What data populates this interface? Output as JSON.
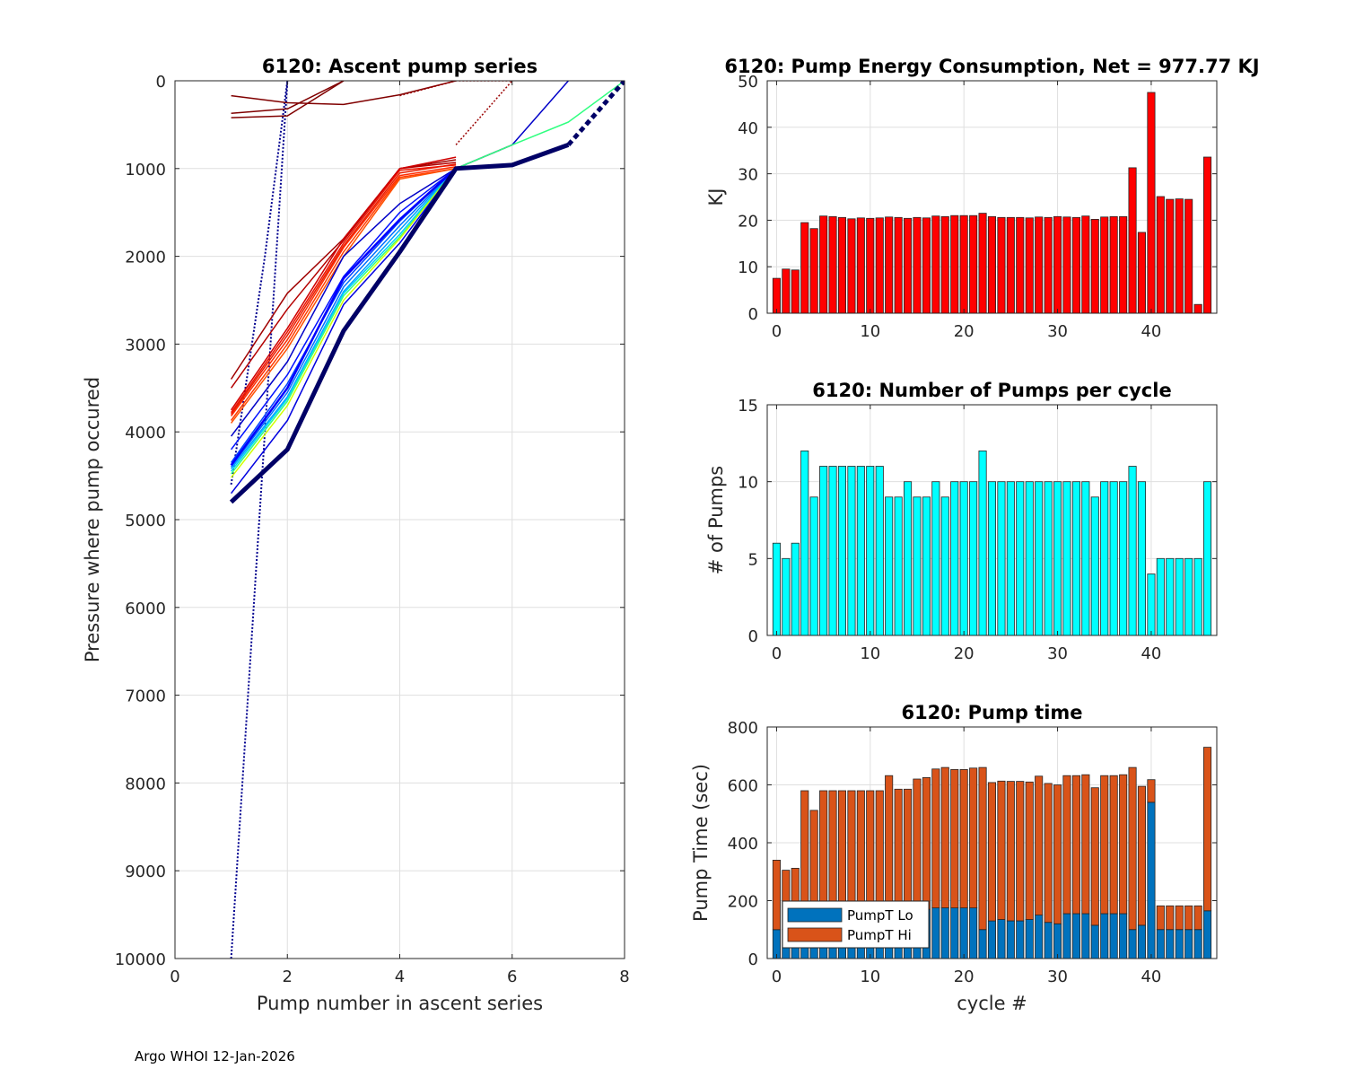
{
  "footer": "Argo WHOI 12-Jan-2026",
  "colors": {
    "energy_bar": "#ff0000",
    "pumps_bar": "#00ffff",
    "pumpt_lo": "#0072bd",
    "pumpt_hi": "#d95319",
    "bar_edge": "#262626"
  },
  "chart_data": [
    {
      "id": "ascent",
      "type": "line",
      "title": "6120: Ascent pump series",
      "xlabel": "Pump number in ascent series",
      "ylabel": "Pressure where pump occured",
      "xlim": [
        0,
        8
      ],
      "ylim": [
        0,
        10000
      ],
      "y_reversed": true,
      "xticks": [
        0,
        2,
        4,
        6,
        8
      ],
      "yticks": [
        0,
        1000,
        2000,
        3000,
        4000,
        5000,
        6000,
        7000,
        8000,
        9000,
        10000
      ],
      "series": [
        {
          "name": "c1",
          "color": "#00008f",
          "width": 2,
          "dash": "2,2",
          "x": [
            1,
            2,
            2
          ],
          "y": [
            10000,
            0,
            0
          ]
        },
        {
          "name": "c1b",
          "color": "#00008f",
          "width": 2,
          "dash": "2,2",
          "x": [
            1,
            1.6,
            2
          ],
          "y": [
            4600,
            2000,
            0
          ]
        },
        {
          "name": "c2",
          "color": "#800000",
          "width": 1.5,
          "dash": "",
          "x": [
            1,
            2,
            3,
            4,
            5
          ],
          "y": [
            170,
            250,
            270,
            160,
            0
          ]
        },
        {
          "name": "c3",
          "color": "#800000",
          "width": 1.5,
          "dash": "",
          "x": [
            1,
            2,
            2.5,
            3
          ],
          "y": [
            420,
            400,
            200,
            0
          ]
        },
        {
          "name": "c4",
          "color": "#800000",
          "width": 1.5,
          "dash": "",
          "x": [
            1,
            2,
            3
          ],
          "y": [
            370,
            320,
            0
          ]
        },
        {
          "name": "c5",
          "color": "#9a0000",
          "width": 1.5,
          "dash": "2,2",
          "x": [
            4,
            5,
            6
          ],
          "y": [
            170,
            0,
            0
          ]
        },
        {
          "name": "c6",
          "color": "#9a0000",
          "width": 1.5,
          "dash": "2,2",
          "x": [
            5,
            6
          ],
          "y": [
            730,
            0
          ]
        },
        {
          "name": "r1",
          "color": "#a00000",
          "width": 1.5,
          "dash": "",
          "x": [
            1,
            2,
            3,
            4,
            5
          ],
          "y": [
            3400,
            2420,
            1800,
            1000,
            900
          ]
        },
        {
          "name": "r2",
          "color": "#b40000",
          "width": 1.5,
          "dash": "",
          "x": [
            1,
            2,
            3,
            4,
            5
          ],
          "y": [
            3500,
            2600,
            1820,
            1000,
            930
          ]
        },
        {
          "name": "r3",
          "color": "#d00000",
          "width": 1.5,
          "dash": "",
          "x": [
            1,
            2,
            3,
            4,
            5
          ],
          "y": [
            3750,
            2820,
            1800,
            1000,
            870
          ]
        },
        {
          "name": "r4",
          "color": "#e61e00",
          "width": 1.5,
          "dash": "",
          "x": [
            1,
            2,
            3,
            4,
            5
          ],
          "y": [
            3800,
            2900,
            1880,
            1050,
            950
          ]
        },
        {
          "name": "r5",
          "color": "#ff2a00",
          "width": 1.5,
          "dash": "",
          "x": [
            1,
            2,
            3,
            4,
            5
          ],
          "y": [
            3820,
            2950,
            1900,
            1080,
            980
          ]
        },
        {
          "name": "r6",
          "color": "#ff3c00",
          "width": 1.5,
          "dash": "",
          "x": [
            1,
            2,
            3,
            4,
            5
          ],
          "y": [
            3870,
            3000,
            1950,
            1100,
            1000
          ]
        },
        {
          "name": "r7",
          "color": "#f01400",
          "width": 1.5,
          "dash": "",
          "x": [
            1,
            2,
            3,
            4,
            5
          ],
          "y": [
            3780,
            2860,
            1850,
            1020,
            960
          ]
        },
        {
          "name": "r8",
          "color": "#ff5000",
          "width": 1.5,
          "dash": "",
          "x": [
            1,
            2,
            3,
            4,
            5,
            6
          ],
          "y": [
            3900,
            3050,
            2000,
            1120,
            1000,
            730
          ]
        },
        {
          "name": "b1",
          "color": "#0000c8",
          "width": 1.5,
          "dash": "",
          "x": [
            1,
            2,
            3,
            4,
            5,
            6,
            7
          ],
          "y": [
            4050,
            3200,
            2000,
            1400,
            1000,
            730,
            0
          ]
        },
        {
          "name": "b2",
          "color": "#0010ff",
          "width": 1.5,
          "dash": "",
          "x": [
            1,
            2,
            3,
            4,
            5
          ],
          "y": [
            4200,
            3350,
            2230,
            1500,
            1000
          ]
        },
        {
          "name": "b3",
          "color": "#0040ff",
          "width": 1.5,
          "dash": "",
          "x": [
            1,
            2,
            3,
            4,
            5
          ],
          "y": [
            4350,
            3450,
            2300,
            1600,
            1000
          ]
        },
        {
          "name": "b4",
          "color": "#0070ff",
          "width": 1.5,
          "dash": "",
          "x": [
            1,
            2,
            3,
            4,
            5
          ],
          "y": [
            4400,
            3550,
            2350,
            1650,
            1000
          ]
        },
        {
          "name": "b5",
          "color": "#00a0ff",
          "width": 1.5,
          "dash": "",
          "x": [
            1,
            2,
            3,
            4,
            5
          ],
          "y": [
            4420,
            3600,
            2400,
            1700,
            1000
          ]
        },
        {
          "name": "b6",
          "color": "#00d0ff",
          "width": 1.5,
          "dash": "",
          "x": [
            1,
            2,
            3,
            4,
            5
          ],
          "y": [
            4450,
            3620,
            2420,
            1750,
            1000
          ]
        },
        {
          "name": "g1",
          "color": "#30ff80",
          "width": 1.5,
          "dash": "",
          "x": [
            1,
            2,
            3,
            4,
            5,
            6,
            7,
            8
          ],
          "y": [
            4480,
            3650,
            2450,
            1780,
            1000,
            730,
            470,
            0
          ]
        },
        {
          "name": "y1",
          "color": "#d0ff00",
          "width": 1.5,
          "dash": "",
          "x": [
            1,
            2,
            3,
            4,
            5
          ],
          "y": [
            4520,
            3700,
            2500,
            1800,
            1000
          ]
        },
        {
          "name": "b7",
          "color": "#0000e0",
          "width": 1.5,
          "dash": "",
          "x": [
            1,
            2,
            3,
            4,
            5
          ],
          "y": [
            4700,
            3870,
            2550,
            1850,
            1000
          ]
        },
        {
          "name": "b8",
          "color": "#0000ff",
          "width": 2.5,
          "dash": "",
          "x": [
            1,
            2,
            3,
            4,
            5
          ],
          "y": [
            4380,
            3500,
            2250,
            1580,
            1000
          ]
        },
        {
          "name": "k1",
          "color": "#000066",
          "width": 5,
          "dash": "",
          "x": [
            1,
            2,
            3,
            4,
            5,
            6,
            7
          ],
          "y": [
            4800,
            4200,
            2850,
            1950,
            1000,
            960,
            730
          ]
        },
        {
          "name": "k1d",
          "color": "#000066",
          "width": 5,
          "dash": "6,4",
          "x": [
            7,
            8
          ],
          "y": [
            730,
            0
          ]
        }
      ]
    },
    {
      "id": "energy",
      "type": "bar",
      "title": "6120: Pump Energy Consumption,  Net = 977.77 KJ",
      "xlabel": "",
      "ylabel": "KJ",
      "xlim": [
        -1,
        47
      ],
      "ylim": [
        0,
        50
      ],
      "xticks": [
        0,
        10,
        20,
        30,
        40
      ],
      "yticks": [
        0,
        10,
        20,
        30,
        40,
        50
      ],
      "categories": [
        0,
        1,
        2,
        3,
        4,
        5,
        6,
        7,
        8,
        9,
        10,
        11,
        12,
        13,
        14,
        15,
        16,
        17,
        18,
        19,
        20,
        21,
        22,
        23,
        24,
        25,
        26,
        27,
        28,
        29,
        30,
        31,
        32,
        33,
        34,
        35,
        36,
        37,
        38,
        39,
        40,
        41,
        42,
        43,
        44,
        45,
        46
      ],
      "values": [
        7.5,
        9.5,
        9.3,
        19.5,
        18.2,
        20.9,
        20.8,
        20.6,
        20.3,
        20.5,
        20.4,
        20.5,
        20.7,
        20.6,
        20.4,
        20.6,
        20.5,
        20.9,
        20.8,
        21,
        21,
        21,
        21.5,
        20.8,
        20.6,
        20.6,
        20.6,
        20.5,
        20.7,
        20.6,
        20.8,
        20.7,
        20.6,
        20.9,
        20.2,
        20.7,
        20.8,
        20.8,
        31.3,
        17.4,
        47.5,
        25.1,
        24.5,
        24.6,
        24.5,
        1.9,
        33.6
      ]
    },
    {
      "id": "pumps",
      "type": "bar",
      "title": "6120: Number of Pumps per cycle",
      "xlabel": "",
      "ylabel": "# of Pumps",
      "xlim": [
        -1,
        47
      ],
      "ylim": [
        0,
        15
      ],
      "xticks": [
        0,
        10,
        20,
        30,
        40
      ],
      "yticks": [
        0,
        5,
        10,
        15
      ],
      "categories": [
        0,
        1,
        2,
        3,
        4,
        5,
        6,
        7,
        8,
        9,
        10,
        11,
        12,
        13,
        14,
        15,
        16,
        17,
        18,
        19,
        20,
        21,
        22,
        23,
        24,
        25,
        26,
        27,
        28,
        29,
        30,
        31,
        32,
        33,
        34,
        35,
        36,
        37,
        38,
        39,
        40,
        41,
        42,
        43,
        44,
        45,
        46
      ],
      "values": [
        6,
        5,
        6,
        12,
        9,
        11,
        11,
        11,
        11,
        11,
        11,
        11,
        9,
        9,
        10,
        9,
        9,
        10,
        9,
        10,
        10,
        10,
        12,
        10,
        10,
        10,
        10,
        10,
        10,
        10,
        10,
        10,
        10,
        10,
        9,
        10,
        10,
        10,
        11,
        10,
        4,
        5,
        5,
        5,
        5,
        5,
        10
      ]
    },
    {
      "id": "pumptime",
      "type": "bar",
      "stacked": true,
      "title": "6120: Pump time",
      "xlabel": "cycle #",
      "ylabel": "Pump Time (sec)",
      "xlim": [
        -1,
        47
      ],
      "ylim": [
        0,
        800
      ],
      "xticks": [
        0,
        10,
        20,
        30,
        40
      ],
      "yticks": [
        0,
        200,
        400,
        600,
        800
      ],
      "categories": [
        0,
        1,
        2,
        3,
        4,
        5,
        6,
        7,
        8,
        9,
        10,
        11,
        12,
        13,
        14,
        15,
        16,
        17,
        18,
        19,
        20,
        21,
        22,
        23,
        24,
        25,
        26,
        27,
        28,
        29,
        30,
        31,
        32,
        33,
        34,
        35,
        36,
        37,
        38,
        39,
        40,
        41,
        42,
        43,
        44,
        45,
        46
      ],
      "series": [
        {
          "name": "PumpT Lo",
          "values": [
            100,
            100,
            100,
            100,
            100,
            100,
            100,
            100,
            100,
            100,
            100,
            100,
            110,
            100,
            100,
            110,
            170,
            175,
            175,
            175,
            175,
            175,
            100,
            130,
            135,
            130,
            130,
            135,
            150,
            125,
            120,
            155,
            155,
            155,
            115,
            155,
            155,
            155,
            100,
            115,
            540,
            100,
            100,
            100,
            100,
            100,
            165
          ]
        },
        {
          "name": "PumpT Hi",
          "values": [
            240,
            205,
            212,
            480,
            412,
            480,
            480,
            480,
            480,
            480,
            480,
            480,
            522,
            485,
            485,
            510,
            455,
            480,
            485,
            478,
            478,
            483,
            560,
            478,
            478,
            482,
            482,
            475,
            480,
            480,
            480,
            477,
            477,
            480,
            475,
            477,
            477,
            480,
            560,
            480,
            78,
            82,
            82,
            82,
            82,
            82,
            565
          ]
        }
      ],
      "legend": {
        "entries": [
          "PumpT Lo",
          "PumpT Hi"
        ],
        "location": "bottom-left"
      }
    }
  ]
}
